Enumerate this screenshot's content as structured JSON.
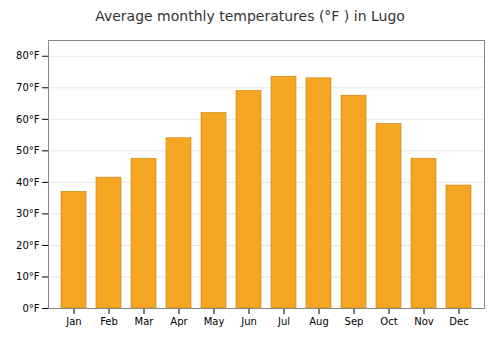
{
  "chart_data": {
    "type": "bar",
    "title": "Average monthly temperatures (°F ) in Lugo",
    "categories": [
      "Jan",
      "Feb",
      "Mar",
      "Apr",
      "May",
      "Jun",
      "Jul",
      "Aug",
      "Sep",
      "Oct",
      "Nov",
      "Dec"
    ],
    "values": [
      37,
      41.5,
      47.5,
      54,
      62,
      69,
      73.5,
      73,
      67.5,
      58.5,
      47.5,
      39
    ],
    "color": "#F5A623",
    "ylim": [
      0,
      85
    ],
    "yticks": [
      {
        "value": 0,
        "label": "0°F"
      },
      {
        "value": 10,
        "label": "10°F"
      },
      {
        "value": 20,
        "label": "20°F"
      },
      {
        "value": 30,
        "label": "30°F"
      },
      {
        "value": 40,
        "label": "40°F"
      },
      {
        "value": 50,
        "label": "50°F"
      },
      {
        "value": 60,
        "label": "60°F"
      },
      {
        "value": 70,
        "label": "70°F"
      },
      {
        "value": 80,
        "label": "80°F"
      }
    ],
    "grid": true
  }
}
